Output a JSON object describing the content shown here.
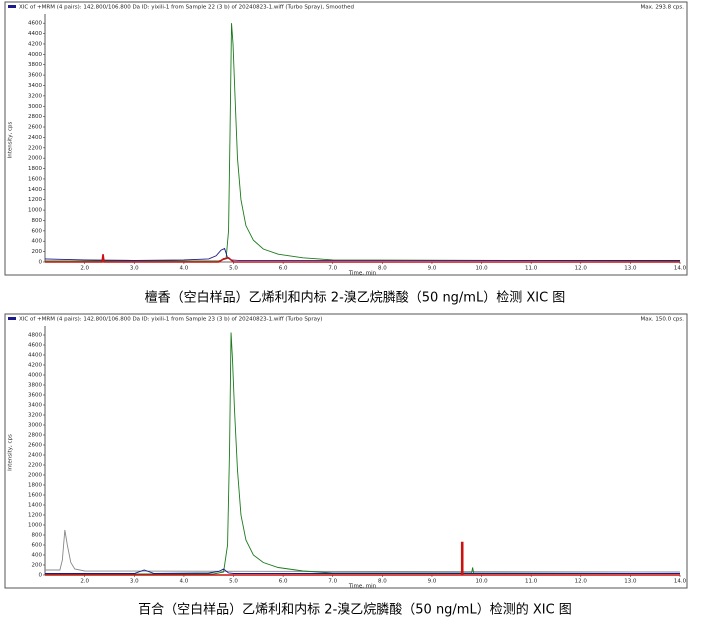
{
  "chart_data": [
    {
      "type": "line",
      "header": "XIC of +MRM (4 pairs): 142.800/106.800 Da ID: yixili-1 from Sample 22 (3 b) of 20240823-1.wiff (Turbo Spray), Smoothed",
      "max_label": "Max. 293.8 cps.",
      "y_label": "Intensity, cps",
      "x_label": "Time, min",
      "caption": "檀香（空白样品）乙烯利和内标 2-溴乙烷膦酸（50 ng/mL）检测 XIC 图",
      "xlim": [
        1.2,
        14.0
      ],
      "ylim": [
        0,
        4700
      ],
      "xticks": [
        {
          "value": 2,
          "label": "2.0"
        },
        {
          "value": 3,
          "label": "3.0"
        },
        {
          "value": 4,
          "label": "4.0"
        },
        {
          "value": 5,
          "label": "5.0"
        },
        {
          "value": 6,
          "label": "6.0"
        },
        {
          "value": 7,
          "label": "7.0"
        },
        {
          "value": 8,
          "label": "8.0"
        },
        {
          "value": 9,
          "label": "9.0"
        },
        {
          "value": 10,
          "label": "10.0"
        },
        {
          "value": 11,
          "label": "11.0"
        },
        {
          "value": 12,
          "label": "12.0"
        },
        {
          "value": 13,
          "label": "13.0"
        },
        {
          "value": 14,
          "label": "14.0"
        }
      ],
      "yticks": [
        0,
        200,
        400,
        600,
        800,
        1000,
        1200,
        1400,
        1600,
        1800,
        2000,
        2200,
        2400,
        2600,
        2800,
        3000,
        3200,
        3400,
        3600,
        3800,
        4000,
        4200,
        4400,
        4600
      ],
      "series": [
        {
          "color": "#1a7a1a",
          "x": [
            1.2,
            4.7,
            4.85,
            4.9,
            4.93,
            4.96,
            4.99,
            5.03,
            5.08,
            5.15,
            5.25,
            5.4,
            5.6,
            5.9,
            6.4,
            7.0,
            14.0
          ],
          "values": [
            20,
            20,
            60,
            600,
            2500,
            4600,
            4200,
            3200,
            2000,
            1200,
            700,
            420,
            250,
            150,
            80,
            40,
            20
          ]
        },
        {
          "color": "#1a1a8c",
          "x": [
            1.2,
            2.0,
            3.0,
            4.0,
            4.5,
            4.65,
            4.75,
            4.82,
            4.88,
            4.95,
            5.1,
            6,
            8,
            10,
            12,
            14
          ],
          "values": [
            60,
            40,
            30,
            40,
            60,
            120,
            230,
            260,
            80,
            40,
            30,
            30,
            30,
            30,
            30,
            30
          ]
        },
        {
          "color": "#cc1111",
          "x": [
            1.2,
            2.35,
            2.37,
            2.39,
            4.7,
            4.8,
            4.9,
            5.0,
            14.0
          ],
          "values": [
            0,
            0,
            150,
            0,
            0,
            60,
            80,
            0,
            0
          ]
        }
      ]
    },
    {
      "type": "line",
      "header": "XIC of +MRM (4 pairs): 142.800/106.800 Da ID: yixili-1 from Sample 23 (3 b) of 20240823-1.wiff (Turbo Spray)",
      "max_label": "Max. 150.0 cps.",
      "y_label": "Intensity, cps",
      "x_label": "Time, min",
      "caption": "百合（空白样品）乙烯利和内标 2-溴乙烷膦酸（50 ng/mL）检测的 XIC 图",
      "xlim": [
        1.2,
        14.0
      ],
      "ylim": [
        0,
        4900
      ],
      "xticks": [
        {
          "value": 2,
          "label": "2.0"
        },
        {
          "value": 3,
          "label": "3.0"
        },
        {
          "value": 4,
          "label": "4.0"
        },
        {
          "value": 5,
          "label": "5.0"
        },
        {
          "value": 6,
          "label": "6.0"
        },
        {
          "value": 7,
          "label": "7.0"
        },
        {
          "value": 8,
          "label": "8.0"
        },
        {
          "value": 9,
          "label": "9.0"
        },
        {
          "value": 10,
          "label": "10.0"
        },
        {
          "value": 11,
          "label": "11.0"
        },
        {
          "value": 12,
          "label": "12.0"
        },
        {
          "value": 13,
          "label": "13.0"
        },
        {
          "value": 14,
          "label": "14.0"
        }
      ],
      "yticks": [
        0,
        200,
        400,
        600,
        800,
        1000,
        1200,
        1400,
        1600,
        1800,
        2000,
        2200,
        2400,
        2600,
        2800,
        3000,
        3200,
        3400,
        3600,
        3800,
        4000,
        4200,
        4400,
        4600,
        4800
      ],
      "series": [
        {
          "color": "#888888",
          "x": [
            1.2,
            1.5,
            1.55,
            1.6,
            1.65,
            1.72,
            1.8,
            2.0,
            14.0
          ],
          "values": [
            100,
            100,
            300,
            900,
            600,
            250,
            120,
            80,
            60
          ]
        },
        {
          "color": "#1a7a1a",
          "x": [
            1.2,
            4.6,
            4.8,
            4.88,
            4.92,
            4.95,
            4.98,
            5.02,
            5.08,
            5.15,
            5.25,
            5.4,
            5.6,
            5.9,
            6.4,
            7.0,
            9.8,
            9.82,
            9.84,
            14.0
          ],
          "values": [
            20,
            20,
            60,
            600,
            2500,
            4850,
            4300,
            3300,
            2100,
            1200,
            700,
            400,
            250,
            150,
            80,
            40,
            40,
            150,
            40,
            30
          ]
        },
        {
          "color": "#1a1a8c",
          "x": [
            1.2,
            3.0,
            3.2,
            3.4,
            4.5,
            4.7,
            4.8,
            4.85,
            4.9,
            5.0,
            6,
            14
          ],
          "values": [
            30,
            30,
            100,
            30,
            40,
            70,
            120,
            80,
            40,
            30,
            30,
            30
          ]
        },
        {
          "color": "#cc1111",
          "x": [
            1.2,
            9.6,
            9.6,
            9.62,
            9.62,
            14
          ],
          "values": [
            0,
            0,
            650,
            650,
            0,
            0
          ]
        }
      ]
    }
  ]
}
